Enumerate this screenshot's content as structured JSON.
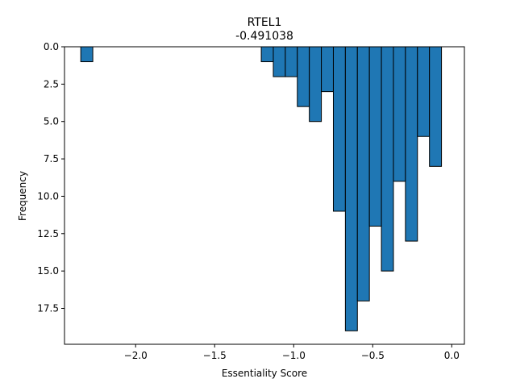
{
  "chart_data": {
    "type": "bar",
    "title": "RTEL1",
    "subtitle": "-0.491038",
    "xlabel": "Essentiality Score",
    "ylabel": "Frequency",
    "xlim": [
      -2.45,
      0.08
    ],
    "ylim": [
      19.9,
      0
    ],
    "y_inverted": true,
    "bin_width": 0.076,
    "x_ticks": [
      -2.0,
      -1.5,
      -1.0,
      -0.5,
      0.0
    ],
    "x_tick_labels": [
      "−2.0",
      "−1.5",
      "−1.0",
      "−0.5",
      "0.0"
    ],
    "y_ticks": [
      0.0,
      2.5,
      5.0,
      7.5,
      10.0,
      12.5,
      15.0,
      17.5
    ],
    "y_tick_labels": [
      "0.0",
      "2.5",
      "5.0",
      "7.5",
      "10.0",
      "12.5",
      "15.0",
      "17.5"
    ],
    "bins": [
      {
        "x": -2.309,
        "count": 1
      },
      {
        "x": -1.167,
        "count": 1
      },
      {
        "x": -1.091,
        "count": 2
      },
      {
        "x": -1.015,
        "count": 2
      },
      {
        "x": -0.939,
        "count": 4
      },
      {
        "x": -0.863,
        "count": 5
      },
      {
        "x": -0.787,
        "count": 3
      },
      {
        "x": -0.711,
        "count": 11
      },
      {
        "x": -0.635,
        "count": 19
      },
      {
        "x": -0.559,
        "count": 17
      },
      {
        "x": -0.483,
        "count": 12
      },
      {
        "x": -0.407,
        "count": 15
      },
      {
        "x": -0.331,
        "count": 9
      },
      {
        "x": -0.255,
        "count": 13
      },
      {
        "x": -0.179,
        "count": 6
      },
      {
        "x": -0.103,
        "count": 8
      }
    ],
    "bar_color": "#1f77b4",
    "edge_color": "#000000",
    "grid": false
  }
}
